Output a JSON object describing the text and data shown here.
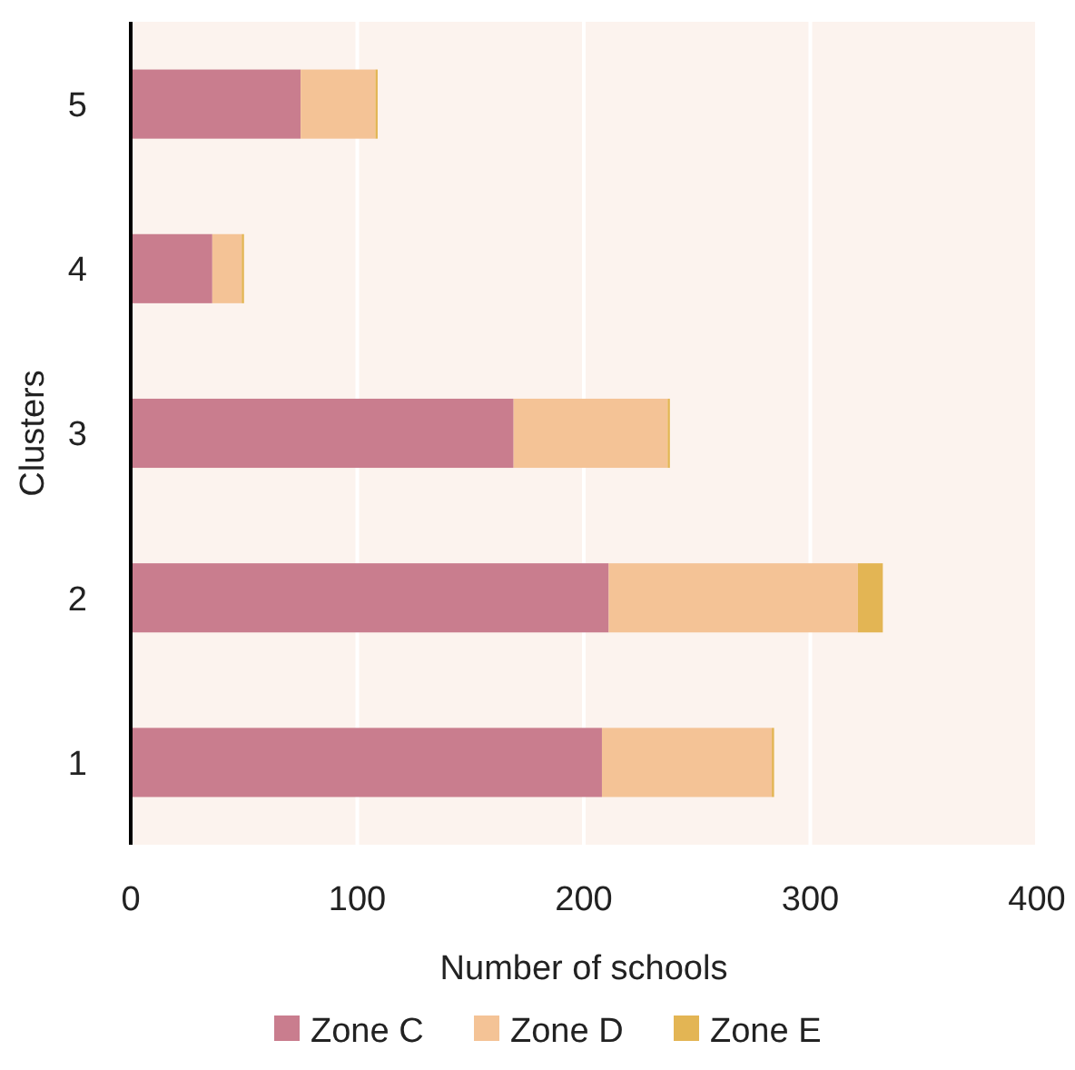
{
  "chart_data": {
    "type": "bar",
    "orientation": "horizontal",
    "stacked": true,
    "xlabel": "Number of schools",
    "ylabel": "Clusters",
    "categories": [
      "5",
      "4",
      "3",
      "2",
      "1"
    ],
    "series": [
      {
        "name": "Zone C",
        "color": "#c97d8e",
        "values": [
          75,
          36,
          169,
          211,
          208
        ]
      },
      {
        "name": "Zone D",
        "color": "#f4c396",
        "values": [
          33,
          13,
          68,
          110,
          75
        ]
      },
      {
        "name": "Zone E",
        "color": "#e3b554",
        "values": [
          1,
          1,
          1,
          11,
          1
        ]
      }
    ],
    "xlim": [
      0,
      400
    ],
    "xticks": [
      0,
      100,
      200,
      300,
      400
    ],
    "grid": "x",
    "legend": "bottom"
  }
}
